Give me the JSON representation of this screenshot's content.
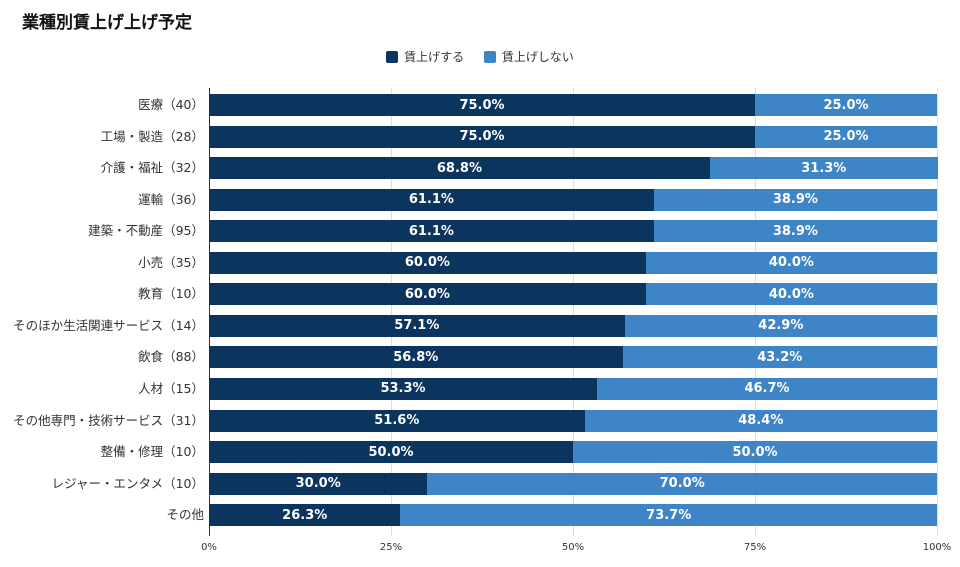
{
  "chart_data": {
    "type": "bar",
    "orientation": "horizontal",
    "stacked": true,
    "title": "業種別賃上げ上げ予定",
    "categories": [
      "医療（40）",
      "工場・製造（28）",
      "介護・福祉（32）",
      "運輸（36）",
      "建築・不動産（95）",
      "小売（35）",
      "教育（10）",
      "そのほか生活関連サービス（14）",
      "飲食（88）",
      "人材（15）",
      "その他専門・技術サービス（31）",
      "整備・修理（10）",
      "レジャー・エンタメ（10）",
      "その他"
    ],
    "series": [
      {
        "name": "賃上げする",
        "color": "#0b355e",
        "values": [
          75.0,
          75.0,
          68.8,
          61.1,
          61.1,
          60.0,
          60.0,
          57.1,
          56.8,
          53.3,
          51.6,
          50.0,
          30.0,
          26.3
        ]
      },
      {
        "name": "賃上げしない",
        "color": "#3d85c6",
        "values": [
          25.0,
          25.0,
          31.3,
          38.9,
          38.9,
          40.0,
          40.0,
          42.9,
          43.2,
          46.7,
          48.4,
          50.0,
          70.0,
          73.7
        ]
      }
    ],
    "xlim": [
      0,
      100
    ],
    "xticks": [
      "0%",
      "25%",
      "50%",
      "75%",
      "100%"
    ],
    "grid": true,
    "legend": "top"
  }
}
